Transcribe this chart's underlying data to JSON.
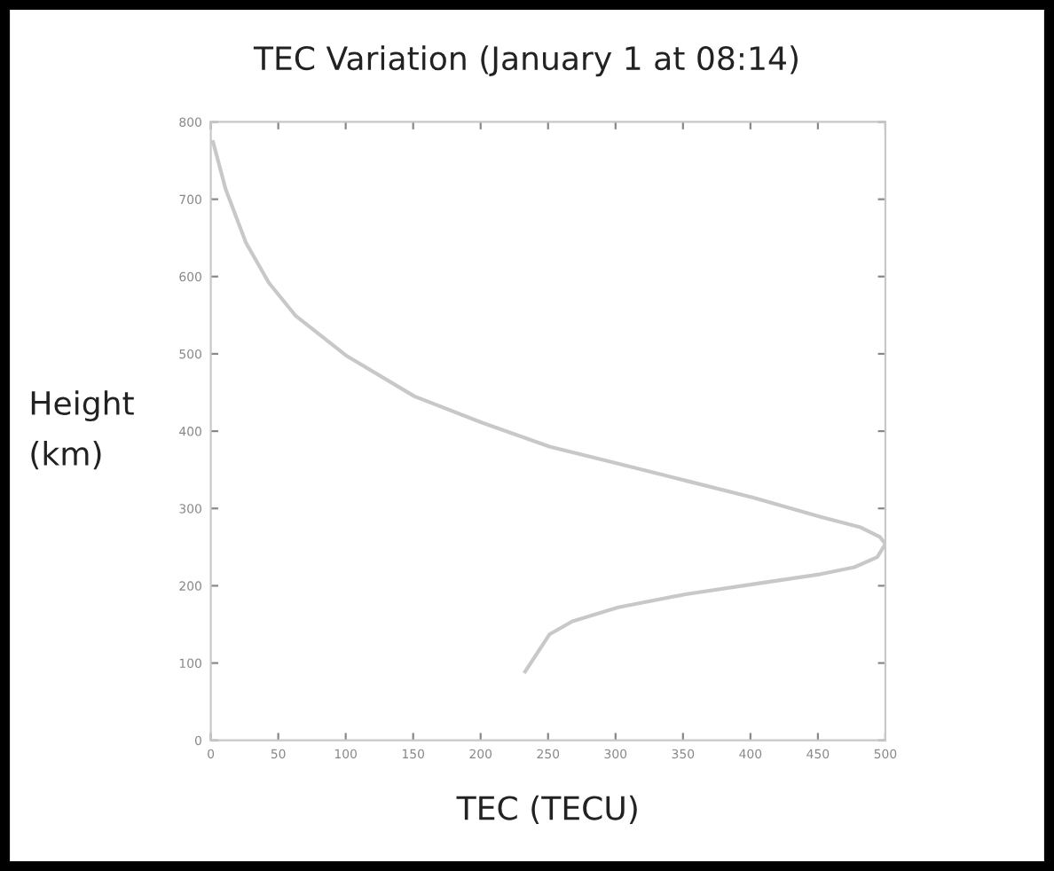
{
  "chart_data": {
    "type": "line",
    "title": "TEC Variation (January 1 at 08:14)",
    "xlabel": "TEC (TECU)",
    "ylabel": "Height\n(km)",
    "series": [
      {
        "color": "#c8c8c8",
        "x": [
          1.7,
          11,
          26,
          43,
          63,
          101,
          151,
          201,
          251,
          302,
          352,
          402,
          452,
          481,
          496,
          500,
          494,
          477,
          452,
          402,
          352,
          302,
          268,
          251,
          233
        ],
        "values": [
          774,
          713,
          644,
          592,
          549,
          497,
          445,
          411,
          380,
          358,
          336,
          314,
          289,
          276,
          263,
          254,
          237,
          224,
          215,
          202,
          189,
          172,
          154,
          137,
          89
        ]
      }
    ],
    "xlim": [
      0,
      500
    ],
    "ylim": [
      0,
      800
    ],
    "xticks": [
      0,
      50,
      100,
      150,
      200,
      250,
      300,
      350,
      400,
      450,
      500
    ],
    "yticks": [
      0,
      100,
      200,
      300,
      400,
      500,
      600,
      700,
      800
    ],
    "grid": false,
    "legend": false,
    "marker": "none",
    "line_style": "solid"
  }
}
